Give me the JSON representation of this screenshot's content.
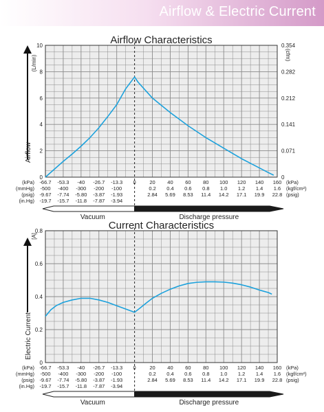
{
  "header": {
    "title": "Airflow & Electric Current"
  },
  "colors": {
    "curve": "#1ba1dc",
    "grid": "#8a8a8a",
    "plot_bg": "#ededed",
    "banner": "#d49ac8"
  },
  "x_axis": {
    "kpa": [
      "-66.7",
      "-53.3",
      "-40",
      "-26.7",
      "-13.3",
      "0",
      "20",
      "40",
      "60",
      "80",
      "100",
      "120",
      "140",
      "160"
    ],
    "mmhg": [
      "-500",
      "-400",
      "-300",
      "-200",
      "-100",
      "",
      "",
      "",
      "",
      "",
      "",
      "",
      "",
      ""
    ],
    "psig": [
      "-9.67",
      "-7.74",
      "-5.80",
      "-3.87",
      "-1.93",
      "",
      "2.84",
      "5.69",
      "8.53",
      "11.4",
      "14.2",
      "17.1",
      "19.9",
      "22.8"
    ],
    "inhg": [
      "-19.7",
      "-15.7",
      "-11.8",
      "-7.87",
      "-3.94",
      "",
      "",
      "",
      "",
      "",
      "",
      "",
      "",
      ""
    ],
    "kgf": [
      "",
      "",
      "",
      "",
      "",
      "",
      "0.2",
      "0.4",
      "0.6",
      "0.8",
      "1.0",
      "1.2",
      "1.4",
      "1.6"
    ],
    "left_units": [
      "(kPa)",
      "(mmHg)",
      "(psig)",
      "(in.Hg)"
    ],
    "right_units": [
      "(kPa)",
      "(kgf/cm²)",
      "(psig)"
    ],
    "vacuum_label": "Vacuum",
    "discharge_label": "Discharge pressure"
  },
  "chart_data": [
    {
      "type": "line",
      "title": "Airflow Characteristics",
      "ylabel": "Airflow",
      "y_unit_left": "(L/min)",
      "y_unit_right": "(cfm)",
      "ylim": [
        0,
        10
      ],
      "y_ticks": [
        "0",
        "2",
        "4",
        "6",
        "8",
        "10"
      ],
      "y2_ticks": [
        "0",
        "0.071",
        "0.141",
        "0.212",
        "0.282",
        "0.354"
      ],
      "x_ticks_count": 14,
      "series": [
        {
          "points": [
            [
              0,
              0
            ],
            [
              0.5,
              0.6
            ],
            [
              1,
              1.2
            ],
            [
              1.5,
              1.75
            ],
            [
              2,
              2.35
            ],
            [
              2.5,
              3.0
            ],
            [
              3,
              3.75
            ],
            [
              3.5,
              4.6
            ],
            [
              4,
              5.5
            ],
            [
              4.5,
              6.7
            ],
            [
              5,
              7.6
            ],
            [
              5.2,
              7.2
            ],
            [
              5.6,
              6.6
            ],
            [
              6,
              6.0
            ],
            [
              6.5,
              5.45
            ],
            [
              7,
              4.9
            ],
            [
              7.5,
              4.4
            ],
            [
              8,
              3.9
            ],
            [
              8.5,
              3.45
            ],
            [
              9,
              3.0
            ],
            [
              9.5,
              2.6
            ],
            [
              10,
              2.2
            ],
            [
              10.5,
              1.8
            ],
            [
              11,
              1.4
            ],
            [
              11.5,
              1.05
            ],
            [
              12,
              0.7
            ],
            [
              12.5,
              0.35
            ],
            [
              12.8,
              0.15
            ]
          ]
        }
      ]
    },
    {
      "type": "line",
      "title": "Current Characteristics",
      "ylabel": "Electric Current",
      "y_unit_left": "[A]",
      "ylim": [
        0,
        0.8
      ],
      "y_ticks": [
        "0",
        "0.2",
        "0.4",
        "0.6",
        "0.8"
      ],
      "x_ticks_count": 14,
      "series": [
        {
          "points": [
            [
              0,
              0.28
            ],
            [
              0.3,
              0.32
            ],
            [
              0.6,
              0.345
            ],
            [
              1,
              0.365
            ],
            [
              1.5,
              0.38
            ],
            [
              2,
              0.39
            ],
            [
              2.5,
              0.39
            ],
            [
              3,
              0.38
            ],
            [
              3.5,
              0.365
            ],
            [
              4,
              0.345
            ],
            [
              4.5,
              0.325
            ],
            [
              5,
              0.305
            ],
            [
              5.3,
              0.33
            ],
            [
              5.7,
              0.365
            ],
            [
              6,
              0.39
            ],
            [
              6.5,
              0.42
            ],
            [
              7,
              0.445
            ],
            [
              7.5,
              0.465
            ],
            [
              8,
              0.48
            ],
            [
              8.5,
              0.487
            ],
            [
              9,
              0.49
            ],
            [
              9.5,
              0.49
            ],
            [
              10,
              0.488
            ],
            [
              10.5,
              0.482
            ],
            [
              11,
              0.472
            ],
            [
              11.5,
              0.458
            ],
            [
              12,
              0.44
            ],
            [
              12.5,
              0.425
            ],
            [
              12.7,
              0.415
            ]
          ]
        }
      ]
    }
  ]
}
